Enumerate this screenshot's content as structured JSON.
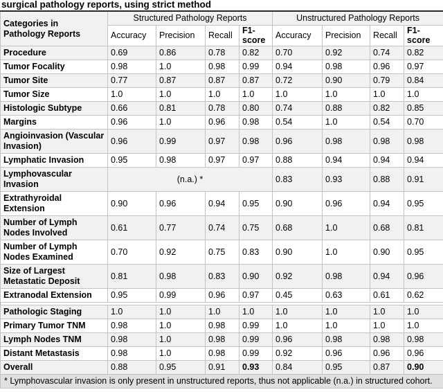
{
  "caption": "surgical pathology reports, using strict method",
  "colors": {
    "stripe_row_bg": "#f1f1f1",
    "footnote_bg": "#e0e0e0",
    "cell_border": "#c3c3c3",
    "table_top_border": "#2a2a2a"
  },
  "table": {
    "corner_header": {
      "line1": "Categories in",
      "line2": "Pathology Reports"
    },
    "groups": [
      "Structured Pathology Reports",
      "Unstructured Pathology Reports"
    ],
    "metrics": [
      "Accuracy",
      "Precision",
      "Recall",
      "F1-score"
    ],
    "rows": [
      {
        "category": "Procedure",
        "structured": [
          "0.69",
          "0.86",
          "0.78",
          "0.82"
        ],
        "unstructured": [
          "0.70",
          "0.92",
          "0.74",
          "0.82"
        ]
      },
      {
        "category": "Tumor Focality",
        "structured": [
          "0.98",
          "1.0",
          "0.98",
          "0.99"
        ],
        "unstructured": [
          "0.94",
          "0.98",
          "0.96",
          "0.97"
        ]
      },
      {
        "category": "Tumor Site",
        "structured": [
          "0.77",
          "0.87",
          "0.87",
          "0.87"
        ],
        "unstructured": [
          "0.72",
          "0.90",
          "0.79",
          "0.84"
        ]
      },
      {
        "category": "Tumor Size",
        "structured": [
          "1.0",
          "1.0",
          "1.0",
          "1.0"
        ],
        "unstructured": [
          "1.0",
          "1.0",
          "1.0",
          "1.0"
        ]
      },
      {
        "category": "Histologic Subtype",
        "structured": [
          "0.66",
          "0.81",
          "0.78",
          "0.80"
        ],
        "unstructured": [
          "0.74",
          "0.88",
          "0.82",
          "0.85"
        ]
      },
      {
        "category": "Margins",
        "structured": [
          "0.96",
          "1.0",
          "0.96",
          "0.98"
        ],
        "unstructured": [
          "0.54",
          "1.0",
          "0.54",
          "0.70"
        ]
      },
      {
        "category": "Angioinvasion (Vascular Invasion)",
        "structured": [
          "0.96",
          "0.99",
          "0.97",
          "0.98"
        ],
        "unstructured": [
          "0.96",
          "0.98",
          "0.98",
          "0.98"
        ]
      },
      {
        "category": "Lymphatic Invasion",
        "structured": [
          "0.95",
          "0.98",
          "0.97",
          "0.97"
        ],
        "unstructured": [
          "0.88",
          "0.94",
          "0.94",
          "0.94"
        ]
      },
      {
        "category": "Lymphovascular Invasion",
        "structured_na": "(n.a.) *",
        "unstructured": [
          "0.83",
          "0.93",
          "0.88",
          "0.91"
        ]
      },
      {
        "category": "Extrathyroidal Extension",
        "structured": [
          "0.90",
          "0.96",
          "0.94",
          "0.95"
        ],
        "unstructured": [
          "0.90",
          "0.96",
          "0.94",
          "0.95"
        ]
      },
      {
        "category": "Number of Lymph Nodes Involved",
        "structured": [
          "0.61",
          "0.77",
          "0.74",
          "0.75"
        ],
        "unstructured": [
          "0.68",
          "1.0",
          "0.68",
          "0.81"
        ]
      },
      {
        "category": "Number of Lymph Nodes Examined",
        "structured": [
          "0.70",
          "0.92",
          "0.75",
          "0.83"
        ],
        "unstructured": [
          "0.90",
          "1.0",
          "0.90",
          "0.95"
        ]
      },
      {
        "category": "Size of Largest Metastatic Deposit",
        "structured": [
          "0.81",
          "0.98",
          "0.83",
          "0.90"
        ],
        "unstructured": [
          "0.92",
          "0.98",
          "0.94",
          "0.96"
        ]
      },
      {
        "category": "Extranodal Extension",
        "structured": [
          "0.95",
          "0.99",
          "0.96",
          "0.97"
        ],
        "unstructured": [
          "0.45",
          "0.63",
          "0.61",
          "0.62"
        ]
      },
      {
        "category": "Pathologic Staging",
        "section_break_before": true,
        "structured": [
          "1.0",
          "1.0",
          "1.0",
          "1.0"
        ],
        "unstructured": [
          "1.0",
          "1.0",
          "1.0",
          "1.0"
        ]
      },
      {
        "category": "Primary Tumor TNM",
        "structured": [
          "0.98",
          "1.0",
          "0.98",
          "0.99"
        ],
        "unstructured": [
          "1.0",
          "1.0",
          "1.0",
          "1.0"
        ]
      },
      {
        "category": "Lymph Nodes TNM",
        "structured": [
          "0.98",
          "1.0",
          "0.98",
          "0.99"
        ],
        "unstructured": [
          "0.96",
          "0.98",
          "0.98",
          "0.98"
        ]
      },
      {
        "category": "Distant Metastasis",
        "structured": [
          "0.98",
          "1.0",
          "0.98",
          "0.99"
        ],
        "unstructured": [
          "0.92",
          "0.96",
          "0.96",
          "0.96"
        ]
      },
      {
        "category": "Overall",
        "bold_f1": true,
        "structured": [
          "0.88",
          "0.95",
          "0.91",
          "0.93"
        ],
        "unstructured": [
          "0.84",
          "0.95",
          "0.87",
          "0.90"
        ]
      }
    ],
    "footnote": "* Lymphovascular invasion is only present in unstructured reports, thus not applicable (n.a.) in structured cohort."
  }
}
